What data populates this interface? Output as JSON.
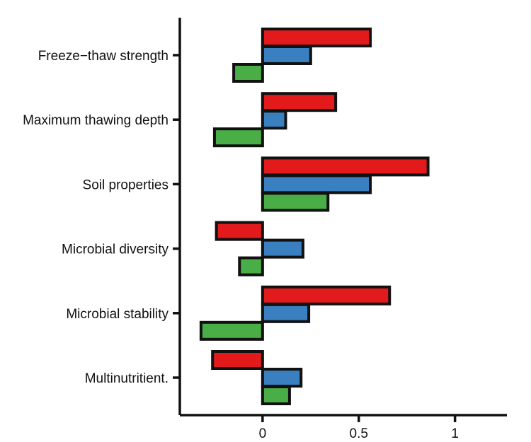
{
  "chart_data": {
    "type": "bar",
    "orientation": "horizontal",
    "categories": [
      "Freeze−thaw strength",
      "Maximum thawing depth",
      "Soil properties",
      "Microbial diversity",
      "Microbial stability",
      "Multinutritient."
    ],
    "series": [
      {
        "color": "#e31a1c",
        "values": [
          0.56,
          0.38,
          0.86,
          -0.24,
          0.66,
          -0.26
        ]
      },
      {
        "color": "#3a7fc0",
        "values": [
          0.25,
          0.12,
          0.56,
          0.21,
          0.24,
          0.2
        ]
      },
      {
        "color": "#4aae46",
        "values": [
          -0.15,
          -0.25,
          0.34,
          -0.12,
          -0.32,
          0.14
        ]
      }
    ],
    "xticks": [
      {
        "value": 0,
        "label": "0"
      },
      {
        "value": 0.5,
        "label": "0.5"
      },
      {
        "value": 1,
        "label": "1"
      }
    ],
    "xlim": [
      -0.43,
      1.27
    ],
    "grid": false,
    "legend": "none"
  }
}
